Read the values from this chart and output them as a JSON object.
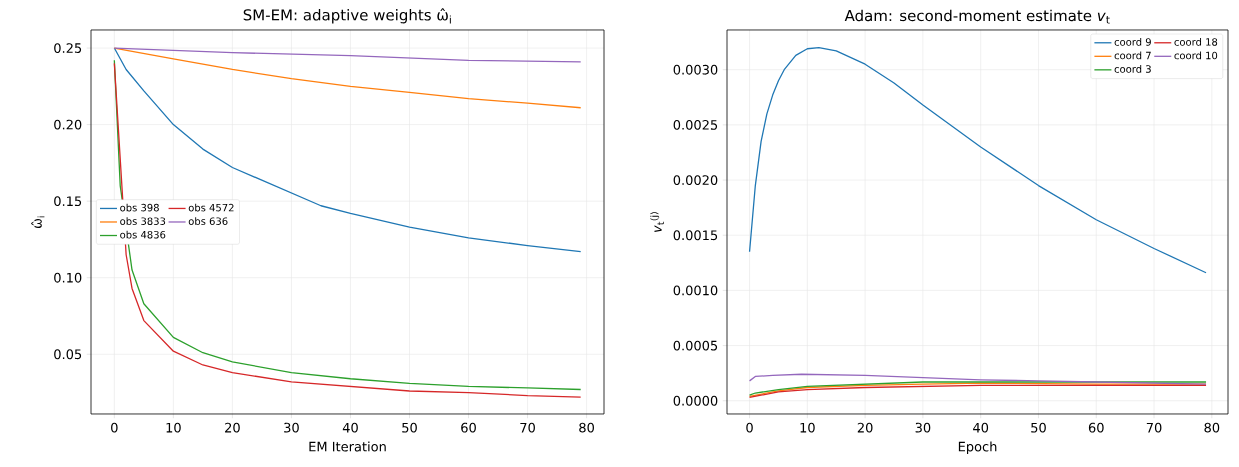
{
  "chart_data": [
    {
      "type": "line",
      "title": "SM-EM: adaptive weights ω̂$_{i}$",
      "xlabel": "EM Iteration",
      "ylabel": "ω̂$_{i}$",
      "xlim": [
        -3.95,
        82.95
      ],
      "ylim": [
        0.011,
        0.2618
      ],
      "xticks": [
        0,
        10,
        20,
        30,
        40,
        50,
        60,
        70,
        80
      ],
      "yticks": [
        {
          "value": 0.05,
          "label": "0.05"
        },
        {
          "value": 0.1,
          "label": "0.10"
        },
        {
          "value": 0.15,
          "label": "0.15"
        },
        {
          "value": 0.2,
          "label": "0.20"
        },
        {
          "value": 0.25,
          "label": "0.25"
        }
      ],
      "grid": true,
      "legend": "left",
      "series": [
        {
          "name": "obs 398",
          "color": "#1f77b4",
          "x": [
            0,
            1,
            2,
            5,
            10,
            15,
            20,
            35,
            40,
            50,
            60,
            70,
            79
          ],
          "values": [
            0.25,
            0.243,
            0.236,
            0.222,
            0.2,
            0.184,
            0.172,
            0.147,
            0.142,
            0.133,
            0.126,
            0.121,
            0.117
          ]
        },
        {
          "name": "obs 3833",
          "color": "#ff7f0e",
          "x": [
            0,
            10,
            20,
            30,
            40,
            50,
            60,
            70,
            79
          ],
          "values": [
            0.25,
            0.243,
            0.236,
            0.23,
            0.225,
            0.221,
            0.217,
            0.214,
            0.211
          ]
        },
        {
          "name": "obs 4836",
          "color": "#2ca02c",
          "x": [
            0,
            1,
            3,
            5,
            10,
            15,
            20,
            30,
            40,
            50,
            60,
            70,
            79
          ],
          "values": [
            0.242,
            0.16,
            0.105,
            0.083,
            0.061,
            0.051,
            0.045,
            0.038,
            0.034,
            0.031,
            0.029,
            0.028,
            0.027
          ]
        },
        {
          "name": "obs 4572",
          "color": "#d62728",
          "x": [
            0,
            2,
            3,
            5,
            10,
            15,
            20,
            30,
            40,
            50,
            60,
            70,
            79
          ],
          "values": [
            0.24,
            0.115,
            0.093,
            0.072,
            0.052,
            0.043,
            0.038,
            0.032,
            0.029,
            0.026,
            0.025,
            0.023,
            0.022
          ]
        },
        {
          "name": "obs 636",
          "color": "#9467bd",
          "x": [
            0,
            20,
            40,
            60,
            79
          ],
          "values": [
            0.25,
            0.247,
            0.245,
            0.242,
            0.241
          ]
        }
      ]
    },
    {
      "type": "line",
      "title": "Adam: second-moment estimate *v*$_{t}$",
      "xlabel": "Epoch",
      "ylabel": "*v*$_{t}$$^{(j)}$",
      "xlim": [
        -3.9,
        82.8
      ],
      "ylim": [
        -0.00012,
        0.00336
      ],
      "xticks": [
        0,
        10,
        20,
        30,
        40,
        50,
        60,
        70,
        80
      ],
      "yticks": [
        {
          "value": 0,
          "label": "0.0000"
        },
        {
          "value": 0.0005,
          "label": "0.0005"
        },
        {
          "value": 0.001,
          "label": "0.0010"
        },
        {
          "value": 0.0015,
          "label": "0.0015"
        },
        {
          "value": 0.002,
          "label": "0.0020"
        },
        {
          "value": 0.0025,
          "label": "0.0025"
        },
        {
          "value": 0.003,
          "label": "0.0030"
        }
      ],
      "grid": true,
      "legend": "top right",
      "series": [
        {
          "name": "coord 9",
          "color": "#1f77b4",
          "x": [
            0,
            1,
            2,
            3,
            4,
            5,
            6,
            8,
            10,
            12,
            15,
            20,
            25,
            30,
            40,
            50,
            60,
            70,
            79
          ],
          "values": [
            0.00135,
            0.00195,
            0.00235,
            0.0026,
            0.00277,
            0.0029,
            0.003,
            0.00313,
            0.00319,
            0.0032,
            0.00317,
            0.00305,
            0.00288,
            0.00268,
            0.0023,
            0.00195,
            0.00164,
            0.00138,
            0.00116
          ]
        },
        {
          "name": "coord 7",
          "color": "#ff7f0e",
          "x": [
            0,
            5,
            10,
            20,
            30,
            40,
            60,
            79
          ],
          "values": [
            4e-05,
            9e-05,
            0.00012,
            0.00014,
            0.00015,
            0.00016,
            0.00015,
            0.00015
          ]
        },
        {
          "name": "coord 3",
          "color": "#2ca02c",
          "x": [
            0,
            1,
            5,
            10,
            20,
            30,
            50,
            79
          ],
          "values": [
            5e-05,
            7e-05,
            0.0001,
            0.00013,
            0.00015,
            0.00017,
            0.00017,
            0.00017
          ]
        },
        {
          "name": "coord 18",
          "color": "#d62728",
          "x": [
            0,
            2,
            5,
            10,
            20,
            30,
            40,
            60,
            79
          ],
          "values": [
            3e-05,
            5e-05,
            8e-05,
            0.0001,
            0.00012,
            0.00013,
            0.00014,
            0.00014,
            0.00014
          ]
        },
        {
          "name": "coord 10",
          "color": "#9467bd",
          "x": [
            0,
            1,
            4,
            9,
            20,
            30,
            40,
            50,
            60,
            79
          ],
          "values": [
            0.00018,
            0.00022,
            0.00023,
            0.00024,
            0.00023,
            0.00021,
            0.00019,
            0.00018,
            0.00017,
            0.00015
          ]
        }
      ]
    }
  ]
}
